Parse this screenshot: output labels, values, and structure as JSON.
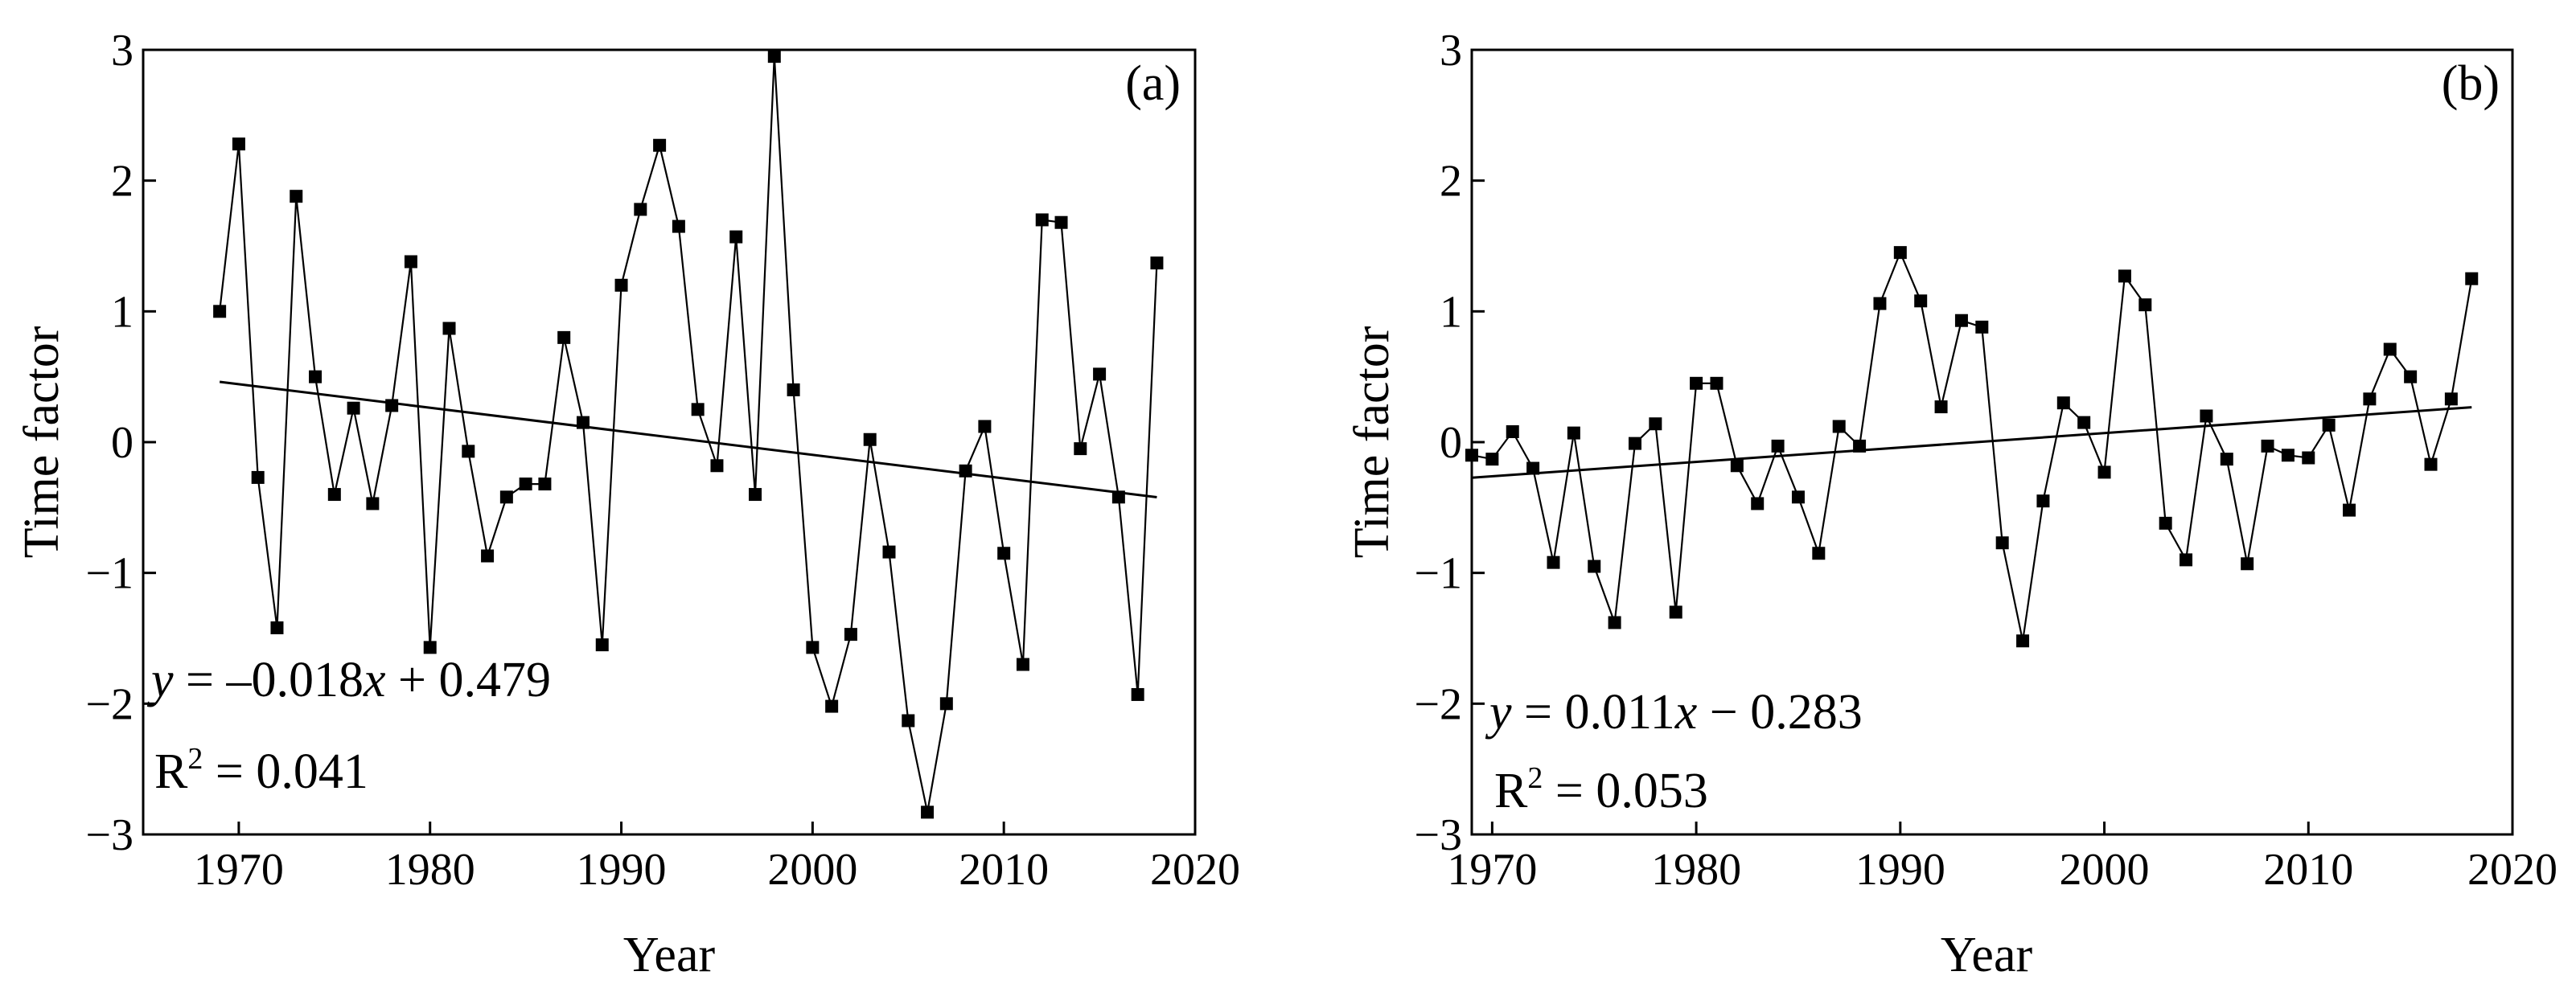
{
  "chart_data": [
    {
      "type": "line",
      "panel_label": "(a)",
      "xlabel": "Year",
      "ylabel": "Time factor",
      "xlim": [
        1965,
        2020
      ],
      "ylim": [
        -3,
        3
      ],
      "xticks": [
        "1970",
        "1980",
        "1990",
        "2000",
        "2010",
        "2020"
      ],
      "yticks": [
        "3",
        "2",
        "1",
        "0",
        "−1",
        "−2",
        "−3"
      ],
      "series": [
        {
          "name": "Time factor",
          "x": [
            1969,
            1970,
            1971,
            1972,
            1973,
            1974,
            1975,
            1976,
            1977,
            1978,
            1979,
            1980,
            1981,
            1982,
            1983,
            1984,
            1985,
            1986,
            1987,
            1988,
            1989,
            1990,
            1991,
            1992,
            1993,
            1994,
            1995,
            1996,
            1997,
            1998,
            1999,
            2000,
            2001,
            2002,
            2003,
            2004,
            2005,
            2006,
            2007,
            2008,
            2009,
            2010,
            2011,
            2012,
            2013,
            2014,
            2015,
            2016,
            2017,
            2018
          ],
          "values": [
            1.0,
            2.28,
            -0.27,
            -1.42,
            1.88,
            0.5,
            -0.4,
            0.26,
            -0.47,
            0.28,
            1.38,
            -1.57,
            0.87,
            -0.07,
            -0.87,
            -0.42,
            -0.32,
            -0.32,
            0.8,
            0.15,
            -1.55,
            1.2,
            1.78,
            2.27,
            1.65,
            0.25,
            -0.18,
            1.57,
            -0.4,
            2.95,
            0.4,
            -1.57,
            -2.02,
            -1.47,
            0.02,
            -0.84,
            -2.13,
            -2.83,
            -2.0,
            -0.22,
            0.12,
            -0.85,
            -1.7,
            1.7,
            1.68,
            -0.05,
            0.52,
            -0.42,
            -1.93,
            1.37
          ]
        }
      ],
      "trend": {
        "slope": -0.018,
        "intercept": 0.479,
        "x_start": 1969,
        "x_end": 2018
      },
      "equation": {
        "y": "y",
        "rest": " = –0.018",
        "x": "x",
        "tail": " + 0.479"
      },
      "r2": {
        "base": "R",
        "sup": "2",
        "rest": " = 0.041"
      }
    },
    {
      "type": "line",
      "panel_label": "(b)",
      "xlabel": "Year",
      "ylabel": "Time factor",
      "xlim": [
        1969,
        2020
      ],
      "ylim": [
        -3,
        3
      ],
      "xticks": [
        "1970",
        "1980",
        "1990",
        "2000",
        "2010",
        "2020"
      ],
      "yticks": [
        "3",
        "2",
        "1",
        "0",
        "−1",
        "−2",
        "−3"
      ],
      "series": [
        {
          "name": "Time factor",
          "x": [
            1969,
            1970,
            1971,
            1972,
            1973,
            1974,
            1975,
            1976,
            1977,
            1978,
            1979,
            1980,
            1981,
            1982,
            1983,
            1984,
            1985,
            1986,
            1987,
            1988,
            1989,
            1990,
            1991,
            1992,
            1993,
            1994,
            1995,
            1996,
            1997,
            1998,
            1999,
            2000,
            2001,
            2002,
            2003,
            2004,
            2005,
            2006,
            2007,
            2008,
            2009,
            2010,
            2011,
            2012,
            2013,
            2014,
            2015,
            2016,
            2017,
            2018
          ],
          "values": [
            -0.1,
            -0.13,
            0.08,
            -0.2,
            -0.92,
            0.07,
            -0.95,
            -1.38,
            -0.01,
            0.14,
            -1.3,
            0.45,
            0.45,
            -0.18,
            -0.47,
            -0.03,
            -0.42,
            -0.85,
            0.12,
            -0.03,
            1.06,
            1.45,
            1.08,
            0.27,
            0.93,
            0.88,
            -0.77,
            -1.52,
            -0.45,
            0.3,
            0.15,
            -0.23,
            1.27,
            1.05,
            -0.62,
            -0.9,
            0.2,
            -0.13,
            -0.93,
            -0.03,
            -0.1,
            -0.12,
            0.13,
            -0.52,
            0.33,
            0.71,
            0.5,
            -0.17,
            0.33,
            1.25
          ]
        }
      ],
      "trend": {
        "slope": 0.011,
        "intercept": -0.283,
        "x_start": 1969,
        "x_end": 2018
      },
      "equation": {
        "y": "y",
        "rest": " = 0.011",
        "x": "x",
        "tail": " −  0.283"
      },
      "r2": {
        "base": "R",
        "sup": "2",
        "rest": " = 0.053"
      }
    }
  ]
}
